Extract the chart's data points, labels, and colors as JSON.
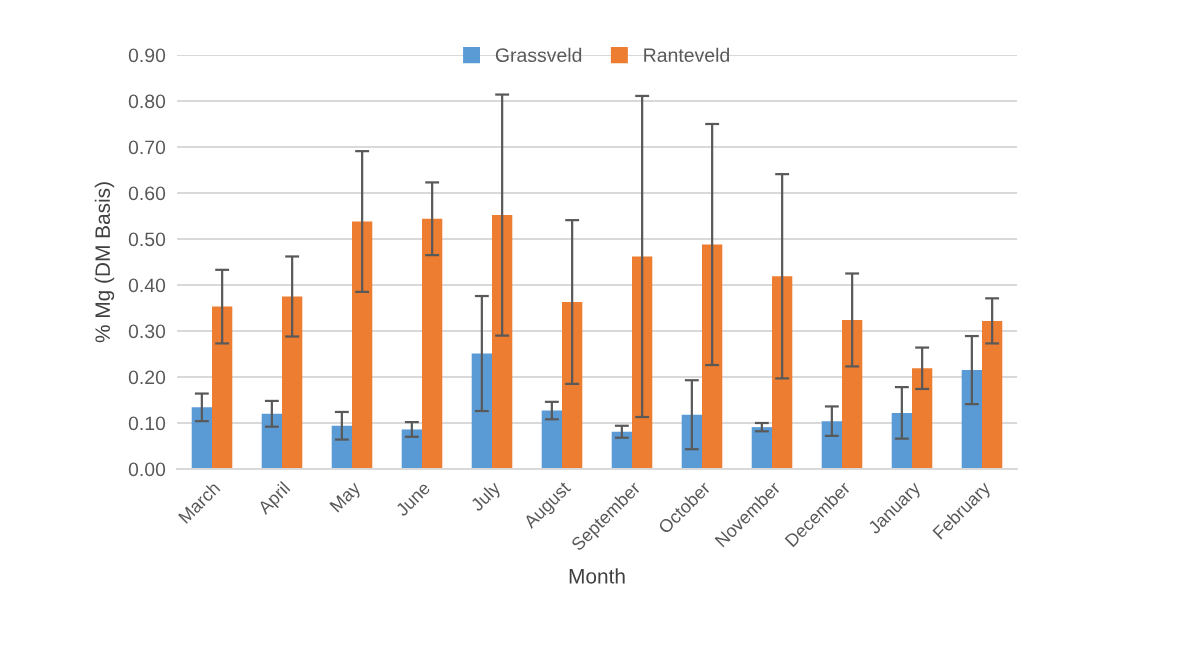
{
  "chart_data": {
    "type": "bar",
    "xlabel": "Month",
    "ylabel": "% Mg (DM Basis)",
    "categories": [
      "March",
      "April",
      "May",
      "June",
      "July",
      "August",
      "September",
      "October",
      "November",
      "December",
      "January",
      "February"
    ],
    "series": [
      {
        "name": "Grassveld",
        "color": "#5b9bd5",
        "values": [
          0.134,
          0.12,
          0.094,
          0.086,
          0.251,
          0.127,
          0.081,
          0.118,
          0.091,
          0.104,
          0.122,
          0.215
        ],
        "errors": [
          0.03,
          0.028,
          0.03,
          0.016,
          0.125,
          0.019,
          0.013,
          0.075,
          0.009,
          0.032,
          0.056,
          0.074
        ]
      },
      {
        "name": "Ranteveld",
        "color": "#ed7d31",
        "values": [
          0.353,
          0.375,
          0.538,
          0.544,
          0.552,
          0.363,
          0.462,
          0.488,
          0.419,
          0.324,
          0.219,
          0.322
        ],
        "errors": [
          0.08,
          0.087,
          0.153,
          0.079,
          0.262,
          0.178,
          0.349,
          0.262,
          0.222,
          0.101,
          0.045,
          0.049
        ]
      }
    ],
    "ylim": [
      0,
      0.9
    ],
    "yticks": [
      {
        "value": 0,
        "label": "0.00"
      },
      {
        "value": 0.1,
        "label": "0.10"
      },
      {
        "value": 0.2,
        "label": "0.20"
      },
      {
        "value": 0.3,
        "label": "0.30"
      },
      {
        "value": 0.4,
        "label": "0.40"
      },
      {
        "value": 0.5,
        "label": "0.50"
      },
      {
        "value": 0.6,
        "label": "0.60"
      },
      {
        "value": 0.7,
        "label": "0.70"
      },
      {
        "value": 0.8,
        "label": "0.80"
      },
      {
        "value": 0.9,
        "label": "0.90"
      }
    ],
    "grid": "y",
    "legend": "top"
  }
}
